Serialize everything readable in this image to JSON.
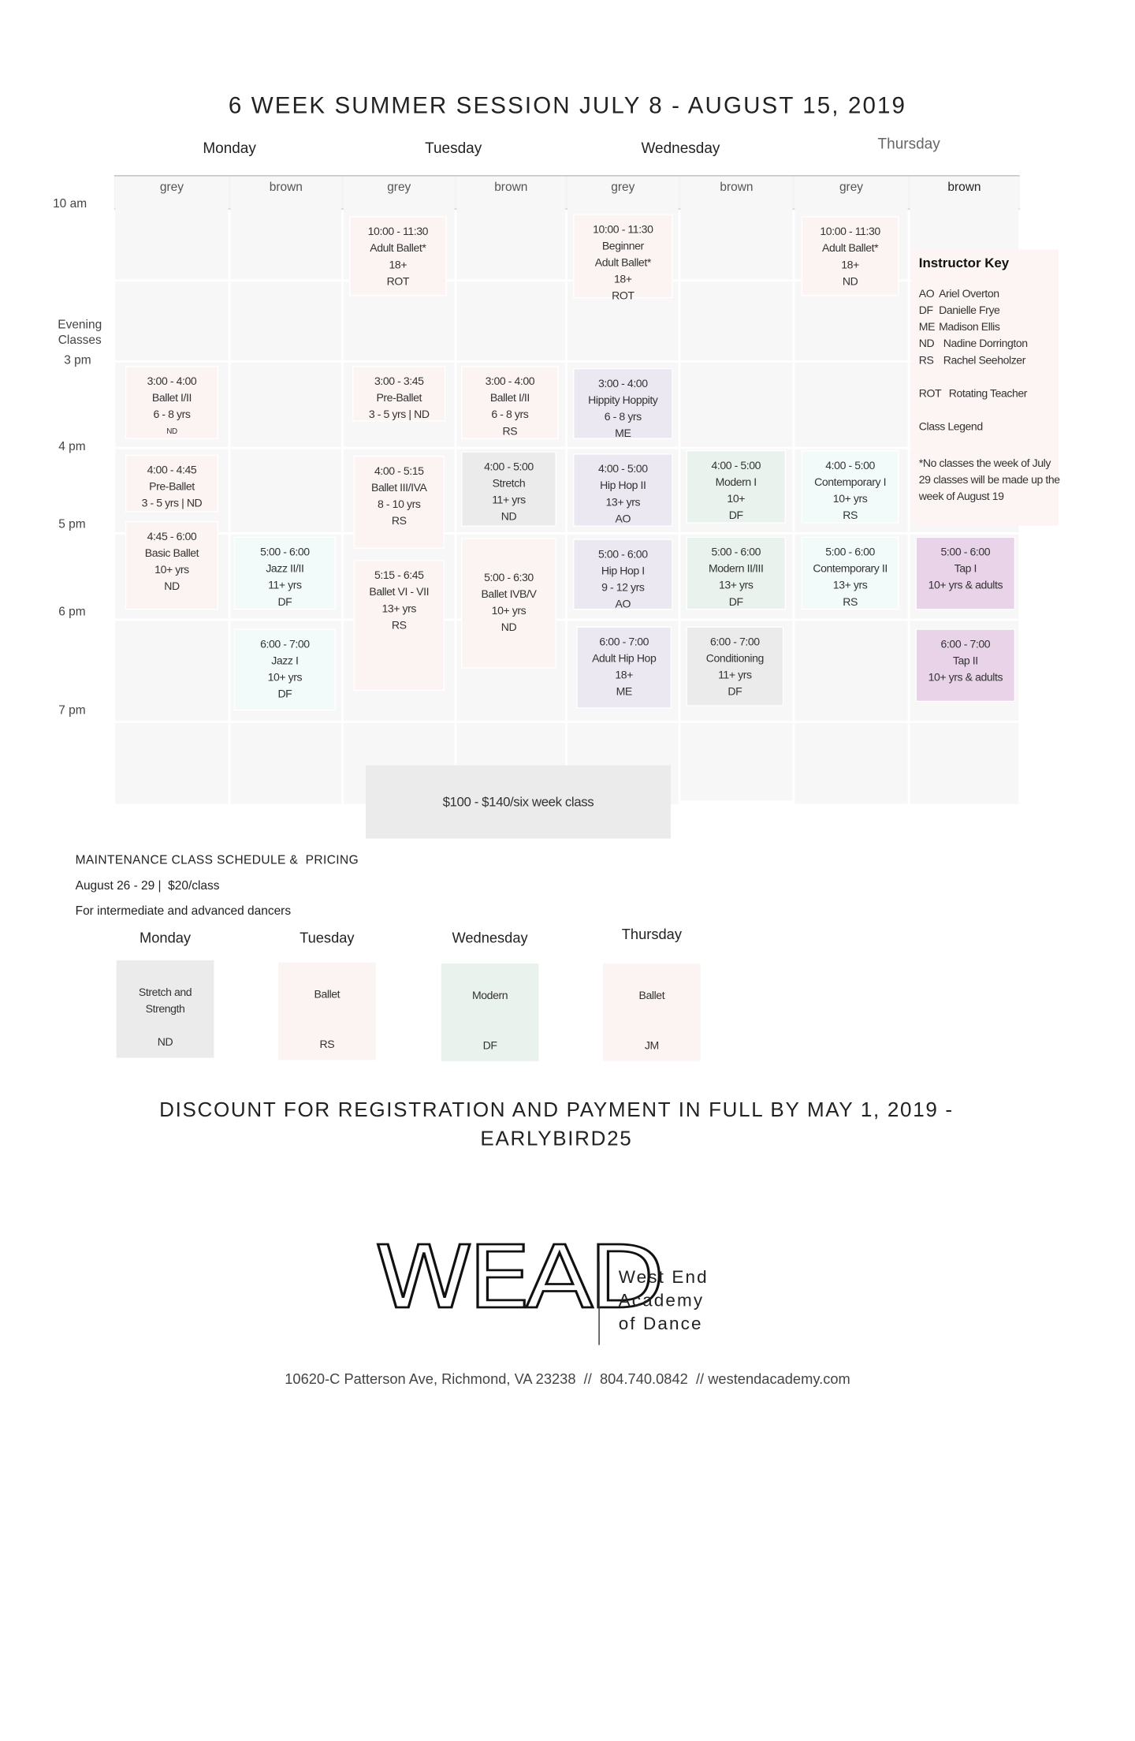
{
  "title": "6 WEEK SUMMER SESSION JULY 8 - AUGUST 15, 2019",
  "days": [
    "Monday",
    "Tuesday",
    "Wednesday",
    "Thursday"
  ],
  "rooms": [
    "grey",
    "brown",
    "grey",
    "brown",
    "grey",
    "brown",
    "grey",
    "brown"
  ],
  "times": [
    "10 am",
    "Evening Classes",
    "3 pm",
    "4 pm",
    "5 pm",
    "6 pm",
    "7 pm"
  ],
  "classes": [
    {
      "lines": [
        "10:00 - 11:30",
        "Adult Ballet*",
        "18+",
        "ROT"
      ]
    },
    {
      "lines": [
        "10:00 - 11:30",
        "Beginner",
        "Adult Ballet*",
        "18+",
        "ROT"
      ]
    },
    {
      "lines": [
        "10:00 - 11:30",
        "Adult Ballet*",
        "18+",
        "ND"
      ]
    },
    {
      "lines": [
        "3:00 - 4:00",
        "Ballet I/II",
        "6 - 8 yrs",
        "ND"
      ]
    },
    {
      "lines": [
        "3:00 - 3:45",
        "Pre-Ballet",
        "3 - 5 yrs | ND"
      ]
    },
    {
      "lines": [
        "3:00 - 4:00",
        "Ballet I/II",
        "6 - 8 yrs",
        "RS"
      ]
    },
    {
      "lines": [
        "3:00 - 4:00",
        "Hippity Hoppity",
        "6 - 8 yrs",
        "ME"
      ]
    },
    {
      "lines": [
        "4:00 - 4:45",
        "Pre-Ballet",
        "3 - 5 yrs | ND"
      ]
    },
    {
      "lines": [
        "4:45 - 6:00",
        "Basic Ballet",
        "10+ yrs",
        "ND"
      ]
    },
    {
      "lines": [
        "4:00 - 5:15",
        "Ballet III/IVA",
        "8 - 10 yrs",
        "RS"
      ]
    },
    {
      "lines": [
        "5:15 - 6:45",
        "Ballet VI - VII",
        "13+ yrs",
        "RS"
      ]
    },
    {
      "lines": [
        "4:00 - 5:00",
        "Stretch",
        "11+ yrs",
        "ND"
      ]
    },
    {
      "lines": [
        "5:00 - 6:30",
        "Ballet IVB/V",
        "10+ yrs",
        "ND"
      ]
    },
    {
      "lines": [
        "4:00 - 5:00",
        "Hip Hop II",
        "13+ yrs",
        "AO"
      ]
    },
    {
      "lines": [
        "5:00 - 6:00",
        "Hip Hop I",
        "9 - 12 yrs",
        "AO"
      ]
    },
    {
      "lines": [
        "6:00 - 7:00",
        "Adult Hip Hop",
        "18+",
        "ME"
      ]
    },
    {
      "lines": [
        "4:00 - 5:00",
        "Modern I",
        "10+",
        "DF"
      ]
    },
    {
      "lines": [
        "5:00 - 6:00",
        "Modern II/III",
        "13+ yrs",
        "DF"
      ]
    },
    {
      "lines": [
        "6:00 - 7:00",
        "Conditioning",
        "11+ yrs",
        "DF"
      ]
    },
    {
      "lines": [
        "5:00 - 6:00",
        "Jazz II/II",
        "11+ yrs",
        "DF"
      ]
    },
    {
      "lines": [
        "6:00 - 7:00",
        "Jazz I",
        "10+ yrs",
        "DF"
      ]
    },
    {
      "lines": [
        "4:00 - 5:00",
        "Contemporary I",
        "10+ yrs",
        "RS"
      ]
    },
    {
      "lines": [
        "5:00 - 6:00",
        "Contemporary II",
        "13+ yrs",
        "RS"
      ]
    },
    {
      "lines": [
        "5:00 - 6:00",
        "Tap I",
        "10+ yrs & adults"
      ]
    },
    {
      "lines": [
        "6:00 - 7:00",
        "Tap II",
        "10+ yrs & adults"
      ]
    }
  ],
  "instructor_key": {
    "title": "Instructor Key",
    "entries": [
      {
        "code": "AO",
        "name": "Ariel Overton"
      },
      {
        "code": "DF",
        "name": "Danielle Frye"
      },
      {
        "code": "ME",
        "name": "Madison Ellis"
      },
      {
        "code": "ND",
        "name": "Nadine Dorrington"
      },
      {
        "code": "RS",
        "name": "Rachel Seeholzer"
      },
      {
        "code": "ROT",
        "name": "Rotating Teacher"
      }
    ],
    "legend": "Class Legend",
    "note": "*No classes the week of July 29 classes will be made up the week of August 19"
  },
  "price": "$100 - $140/six week class",
  "maintenance": {
    "title": "MAINTENANCE CLASS SCHEDULE &  PRICING",
    "dates": "August 26 - 29 |  $20/class",
    "audience": "For intermediate and advanced dancers",
    "days": [
      {
        "day": "Monday",
        "lines": [
          "Stretch and Strength",
          "ND"
        ]
      },
      {
        "day": "Tuesday",
        "lines": [
          "Ballet",
          "RS"
        ]
      },
      {
        "day": "Wednesday",
        "lines": [
          "Modern",
          "DF"
        ]
      },
      {
        "day": "Thursday",
        "lines": [
          "Ballet",
          "JM"
        ]
      }
    ]
  },
  "discount": [
    "DISCOUNT FOR REGISTRATION AND PAYMENT IN FULL BY MAY 1, 2019 -",
    "EARLYBIRD25"
  ],
  "footer": {
    "logo": "WEAD",
    "name": [
      "West End",
      "Academy",
      "of Dance"
    ],
    "address": "10620-C Patterson Ave, Richmond, VA 23238  //  804.740.0842  // westendacademy.com"
  }
}
